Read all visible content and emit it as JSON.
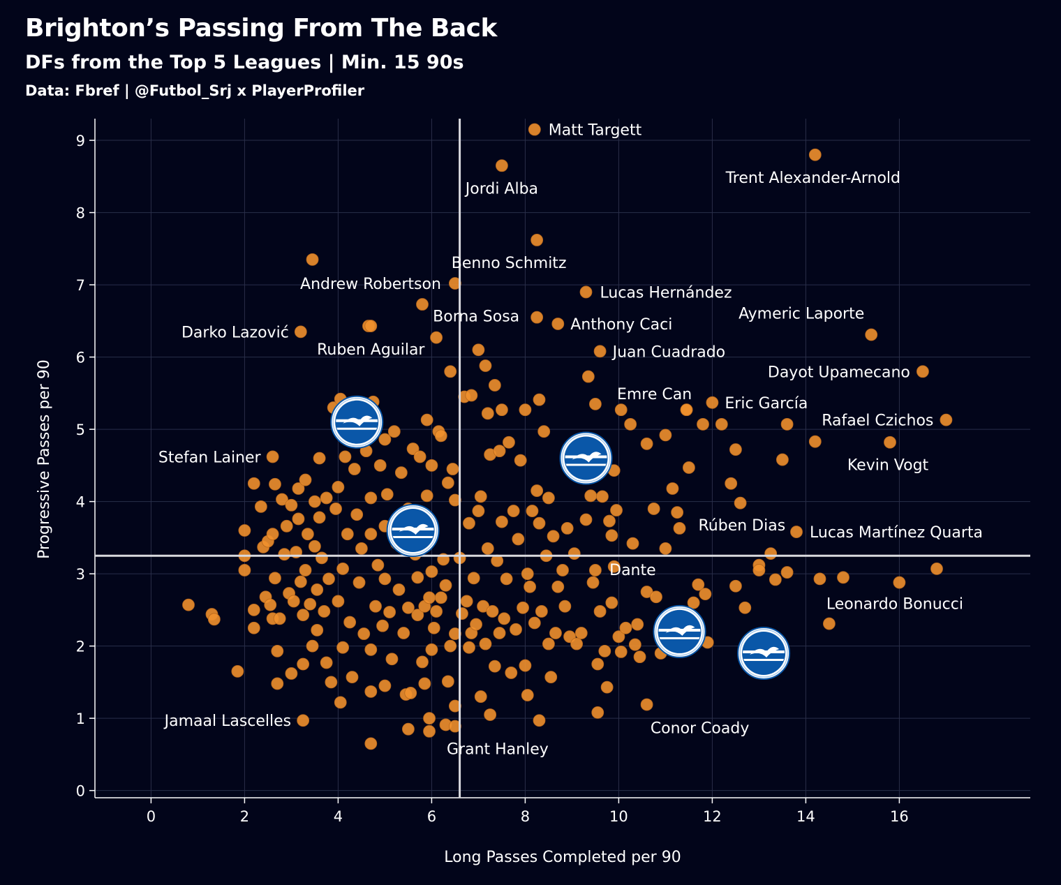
{
  "header": {
    "title": "Brighton’s Passing From The Back",
    "subtitle": "DFs from the Top 5 Leagues | Min. 15 90s",
    "source": "Data: Fbref | @Futbol_Srj x PlayerProfiler"
  },
  "colors": {
    "background": "#02051a",
    "point": "#f0902d",
    "grid": "#2a2f4a",
    "reference_line": "#d9d9de",
    "brighton_blue": "#0a57a8"
  },
  "chart_data": {
    "type": "scatter",
    "xlabel": "Long Passes Completed per 90",
    "ylabel": "Progressive Passes per 90",
    "xlim": [
      -1.2,
      18.8
    ],
    "ylim": [
      -0.1,
      9.3
    ],
    "x_ticks": [
      0,
      2,
      4,
      6,
      8,
      10,
      12,
      14,
      16
    ],
    "y_ticks": [
      0,
      1,
      2,
      3,
      4,
      5,
      6,
      7,
      8,
      9
    ],
    "grid": true,
    "reference_lines": {
      "x": 6.6,
      "y": 3.25
    },
    "brighton_players": [
      {
        "x": 4.4,
        "y": 5.1,
        "icon": "brighton-crest-icon"
      },
      {
        "x": 5.6,
        "y": 3.6,
        "icon": "brighton-crest-icon"
      },
      {
        "x": 9.3,
        "y": 4.6,
        "icon": "brighton-crest-icon"
      },
      {
        "x": 11.3,
        "y": 2.2,
        "icon": "brighton-crest-icon"
      },
      {
        "x": 13.1,
        "y": 1.9,
        "icon": "brighton-crest-icon"
      }
    ],
    "labeled_points": [
      {
        "label": "Matt Targett",
        "x": 8.2,
        "y": 9.15,
        "anchor": "start",
        "dx": 20,
        "dy": 8
      },
      {
        "label": "Jordi Alba",
        "x": 7.5,
        "y": 8.65,
        "anchor": "middle",
        "dx": 0,
        "dy": 40
      },
      {
        "label": "Trent Alexander-Arnold",
        "x": 14.2,
        "y": 8.8,
        "anchor": "middle",
        "dx": -3,
        "dy": 40
      },
      {
        "label": "Benno Schmitz",
        "x": 8.25,
        "y": 7.62,
        "anchor": "middle",
        "dx": -40,
        "dy": 40
      },
      {
        "label": "Andrew Robertson",
        "x": 6.5,
        "y": 7.02,
        "anchor": "end",
        "dx": -20,
        "dy": 8
      },
      {
        "label": "Lucas Hernández",
        "x": 9.3,
        "y": 6.9,
        "anchor": "start",
        "dx": 20,
        "dy": 8
      },
      {
        "label": "Borna Sosa",
        "x": 8.25,
        "y": 6.55,
        "anchor": "end",
        "dx": -25,
        "dy": 6
      },
      {
        "label": "Anthony Caci",
        "x": 8.7,
        "y": 6.46,
        "anchor": "start",
        "dx": 18,
        "dy": 8
      },
      {
        "label": "Aymeric Laporte",
        "x": 15.4,
        "y": 6.31,
        "anchor": "middle",
        "dx": -100,
        "dy": -23
      },
      {
        "label": "Darko Lazović",
        "x": 3.2,
        "y": 6.35,
        "anchor": "end",
        "dx": -17,
        "dy": 8
      },
      {
        "label": "Ruben Aguilar",
        "x": 4.7,
        "y": 6.43,
        "anchor": "middle",
        "dx": 0,
        "dy": 41
      },
      {
        "label": "Juan Cuadrado",
        "x": 9.6,
        "y": 6.08,
        "anchor": "start",
        "dx": 18,
        "dy": 8
      },
      {
        "label": "Dayot Upamecano",
        "x": 16.5,
        "y": 5.8,
        "anchor": "end",
        "dx": -18,
        "dy": 8
      },
      {
        "label": "Emre Can",
        "x": 11.45,
        "y": 5.27,
        "anchor": "middle",
        "dx": -46,
        "dy": -15
      },
      {
        "label": "Eric García",
        "x": 12.0,
        "y": 5.37,
        "anchor": "start",
        "dx": 18,
        "dy": 8
      },
      {
        "label": "Rafael Czichos",
        "x": 17.0,
        "y": 5.13,
        "anchor": "end",
        "dx": -18,
        "dy": 8
      },
      {
        "label": "Kevin Vogt",
        "x": 15.8,
        "y": 4.82,
        "anchor": "middle",
        "dx": -3,
        "dy": 40
      },
      {
        "label": "Stefan Lainer",
        "x": 2.6,
        "y": 4.62,
        "anchor": "end",
        "dx": -17,
        "dy": 8
      },
      {
        "label": "Rúben Dias",
        "x": 11.3,
        "y": 3.63,
        "anchor": "start",
        "dx": 27,
        "dy": 3
      },
      {
        "label": "Lucas Martínez Quarta",
        "x": 13.8,
        "y": 3.58,
        "anchor": "start",
        "dx": 19,
        "dy": 8
      },
      {
        "label": "Dante",
        "x": 11.0,
        "y": 3.35,
        "anchor": "middle",
        "dx": -47,
        "dy": 38
      },
      {
        "label": "Leonardo Bonucci",
        "x": 14.5,
        "y": 2.31,
        "anchor": "middle",
        "dx": 94,
        "dy": -21
      },
      {
        "label": "Conor Coady",
        "x": 10.6,
        "y": 1.19,
        "anchor": "middle",
        "dx": 76,
        "dy": 41
      },
      {
        "label": "Jamaal Lascelles",
        "x": 3.25,
        "y": 0.97,
        "anchor": "end",
        "dx": -17,
        "dy": 8
      },
      {
        "label": "Grant Hanley",
        "x": 6.5,
        "y": 0.89,
        "anchor": "middle",
        "dx": 61,
        "dy": 40
      }
    ],
    "other_points": [
      [
        0.8,
        2.57
      ],
      [
        1.3,
        2.44
      ],
      [
        1.35,
        2.37
      ],
      [
        1.85,
        1.65
      ],
      [
        2.0,
        3.6
      ],
      [
        2.0,
        3.25
      ],
      [
        2.0,
        3.05
      ],
      [
        2.2,
        4.25
      ],
      [
        2.2,
        2.5
      ],
      [
        2.2,
        2.25
      ],
      [
        2.35,
        3.93
      ],
      [
        2.4,
        3.37
      ],
      [
        2.45,
        2.68
      ],
      [
        2.5,
        3.45
      ],
      [
        2.55,
        2.57
      ],
      [
        2.6,
        3.55
      ],
      [
        2.6,
        2.38
      ],
      [
        2.65,
        4.24
      ],
      [
        2.65,
        2.94
      ],
      [
        2.7,
        1.48
      ],
      [
        2.7,
        1.93
      ],
      [
        2.75,
        2.38
      ],
      [
        2.8,
        4.03
      ],
      [
        2.85,
        3.27
      ],
      [
        2.9,
        3.66
      ],
      [
        2.95,
        2.73
      ],
      [
        3.0,
        3.95
      ],
      [
        3.0,
        1.62
      ],
      [
        3.05,
        2.62
      ],
      [
        3.1,
        3.3
      ],
      [
        3.15,
        4.18
      ],
      [
        3.15,
        3.76
      ],
      [
        3.2,
        2.89
      ],
      [
        3.25,
        2.43
      ],
      [
        3.25,
        1.75
      ],
      [
        3.3,
        4.3
      ],
      [
        3.3,
        3.05
      ],
      [
        3.35,
        3.55
      ],
      [
        3.4,
        2.58
      ],
      [
        3.45,
        2.0
      ],
      [
        3.45,
        7.35
      ],
      [
        3.5,
        4.0
      ],
      [
        3.5,
        3.38
      ],
      [
        3.55,
        2.78
      ],
      [
        3.55,
        2.22
      ],
      [
        3.6,
        4.6
      ],
      [
        3.6,
        3.78
      ],
      [
        3.65,
        3.22
      ],
      [
        3.7,
        2.48
      ],
      [
        3.75,
        1.77
      ],
      [
        3.75,
        4.05
      ],
      [
        3.8,
        2.93
      ],
      [
        3.85,
        1.5
      ],
      [
        3.9,
        5.3
      ],
      [
        3.95,
        3.9
      ],
      [
        4.0,
        2.62
      ],
      [
        4.0,
        4.2
      ],
      [
        4.05,
        5.42
      ],
      [
        4.05,
        1.22
      ],
      [
        4.1,
        3.07
      ],
      [
        4.1,
        1.98
      ],
      [
        4.15,
        4.62
      ],
      [
        4.2,
        3.55
      ],
      [
        4.25,
        2.33
      ],
      [
        4.3,
        1.57
      ],
      [
        4.35,
        4.45
      ],
      [
        4.4,
        3.82
      ],
      [
        4.45,
        2.88
      ],
      [
        4.5,
        3.35
      ],
      [
        4.55,
        2.17
      ],
      [
        4.6,
        4.7
      ],
      [
        4.65,
        6.43
      ],
      [
        4.7,
        4.05
      ],
      [
        4.7,
        3.55
      ],
      [
        4.7,
        1.95
      ],
      [
        4.7,
        1.37
      ],
      [
        4.7,
        0.65
      ],
      [
        4.75,
        5.38
      ],
      [
        4.8,
        2.55
      ],
      [
        4.85,
        3.12
      ],
      [
        4.9,
        4.5
      ],
      [
        4.95,
        2.28
      ],
      [
        5.0,
        4.86
      ],
      [
        5.0,
        3.66
      ],
      [
        5.0,
        2.93
      ],
      [
        5.0,
        1.45
      ],
      [
        5.05,
        4.1
      ],
      [
        5.1,
        2.47
      ],
      [
        5.15,
        1.82
      ],
      [
        5.2,
        4.97
      ],
      [
        5.25,
        3.42
      ],
      [
        5.3,
        2.78
      ],
      [
        5.35,
        4.4
      ],
      [
        5.4,
        2.18
      ],
      [
        5.45,
        1.33
      ],
      [
        5.5,
        3.9
      ],
      [
        5.5,
        2.53
      ],
      [
        5.5,
        0.85
      ],
      [
        5.55,
        1.35
      ],
      [
        5.6,
        4.73
      ],
      [
        5.65,
        3.27
      ],
      [
        5.7,
        2.95
      ],
      [
        5.7,
        2.43
      ],
      [
        5.75,
        4.62
      ],
      [
        5.8,
        6.73
      ],
      [
        5.8,
        1.78
      ],
      [
        5.85,
        2.55
      ],
      [
        5.85,
        1.48
      ],
      [
        5.9,
        5.13
      ],
      [
        5.9,
        4.08
      ],
      [
        5.95,
        2.67
      ],
      [
        5.95,
        1.0
      ],
      [
        5.95,
        0.82
      ],
      [
        6.0,
        4.5
      ],
      [
        6.0,
        3.03
      ],
      [
        6.0,
        1.95
      ],
      [
        6.05,
        2.25
      ],
      [
        6.1,
        6.27
      ],
      [
        6.1,
        2.48
      ],
      [
        6.15,
        4.97
      ],
      [
        6.2,
        4.91
      ],
      [
        6.2,
        2.67
      ],
      [
        6.25,
        3.2
      ],
      [
        6.3,
        2.84
      ],
      [
        6.3,
        0.91
      ],
      [
        6.35,
        4.26
      ],
      [
        6.35,
        1.51
      ],
      [
        6.4,
        5.8
      ],
      [
        6.4,
        2.0
      ],
      [
        6.45,
        4.45
      ],
      [
        6.5,
        4.02
      ],
      [
        6.5,
        2.17
      ],
      [
        6.5,
        1.17
      ],
      [
        6.6,
        3.22
      ],
      [
        6.65,
        2.45
      ],
      [
        6.7,
        5.45
      ],
      [
        6.75,
        2.62
      ],
      [
        6.8,
        3.7
      ],
      [
        6.8,
        1.98
      ],
      [
        6.85,
        5.47
      ],
      [
        6.85,
        2.18
      ],
      [
        6.9,
        2.94
      ],
      [
        6.95,
        2.3
      ],
      [
        7.0,
        3.87
      ],
      [
        7.0,
        6.1
      ],
      [
        7.05,
        4.07
      ],
      [
        7.05,
        1.3
      ],
      [
        7.1,
        2.55
      ],
      [
        7.15,
        5.88
      ],
      [
        7.15,
        2.03
      ],
      [
        7.2,
        5.22
      ],
      [
        7.2,
        3.35
      ],
      [
        7.25,
        4.65
      ],
      [
        7.25,
        1.05
      ],
      [
        7.3,
        2.48
      ],
      [
        7.35,
        5.61
      ],
      [
        7.35,
        1.72
      ],
      [
        7.4,
        3.18
      ],
      [
        7.45,
        4.7
      ],
      [
        7.45,
        2.18
      ],
      [
        7.5,
        5.27
      ],
      [
        7.5,
        3.72
      ],
      [
        7.55,
        2.38
      ],
      [
        7.6,
        2.93
      ],
      [
        7.65,
        4.82
      ],
      [
        7.7,
        1.63
      ],
      [
        7.75,
        3.87
      ],
      [
        7.8,
        2.23
      ],
      [
        7.85,
        3.48
      ],
      [
        7.9,
        4.57
      ],
      [
        7.95,
        2.53
      ],
      [
        8.0,
        5.27
      ],
      [
        8.0,
        1.73
      ],
      [
        8.05,
        3.0
      ],
      [
        8.05,
        1.32
      ],
      [
        8.1,
        2.82
      ],
      [
        8.15,
        3.87
      ],
      [
        8.2,
        2.32
      ],
      [
        8.25,
        4.15
      ],
      [
        8.3,
        5.41
      ],
      [
        8.3,
        3.7
      ],
      [
        8.3,
        0.97
      ],
      [
        8.35,
        2.48
      ],
      [
        8.4,
        4.97
      ],
      [
        8.45,
        3.25
      ],
      [
        8.5,
        4.05
      ],
      [
        8.5,
        2.03
      ],
      [
        8.55,
        1.57
      ],
      [
        8.6,
        3.52
      ],
      [
        8.65,
        2.18
      ],
      [
        8.7,
        2.82
      ],
      [
        8.8,
        3.05
      ],
      [
        8.85,
        2.55
      ],
      [
        8.9,
        3.63
      ],
      [
        8.95,
        2.13
      ],
      [
        9.05,
        3.28
      ],
      [
        9.1,
        2.03
      ],
      [
        9.2,
        2.18
      ],
      [
        9.3,
        3.75
      ],
      [
        9.35,
        5.73
      ],
      [
        9.4,
        4.08
      ],
      [
        9.45,
        2.88
      ],
      [
        9.5,
        5.35
      ],
      [
        9.5,
        3.05
      ],
      [
        9.55,
        1.75
      ],
      [
        9.55,
        1.08
      ],
      [
        9.6,
        2.48
      ],
      [
        9.65,
        4.07
      ],
      [
        9.7,
        1.93
      ],
      [
        9.75,
        1.43
      ],
      [
        9.8,
        3.73
      ],
      [
        9.85,
        2.6
      ],
      [
        9.85,
        3.53
      ],
      [
        9.9,
        4.43
      ],
      [
        9.9,
        3.1
      ],
      [
        9.95,
        3.88
      ],
      [
        10.0,
        2.13
      ],
      [
        10.05,
        5.27
      ],
      [
        10.05,
        1.92
      ],
      [
        10.15,
        2.25
      ],
      [
        10.25,
        5.07
      ],
      [
        10.3,
        3.42
      ],
      [
        10.35,
        2.02
      ],
      [
        10.4,
        2.3
      ],
      [
        10.45,
        1.85
      ],
      [
        10.6,
        4.8
      ],
      [
        10.6,
        2.75
      ],
      [
        10.75,
        3.9
      ],
      [
        10.8,
        2.68
      ],
      [
        10.9,
        1.9
      ],
      [
        11.0,
        4.92
      ],
      [
        11.15,
        4.18
      ],
      [
        11.25,
        3.85
      ],
      [
        11.45,
        5.27
      ],
      [
        11.5,
        4.47
      ],
      [
        11.6,
        2.6
      ],
      [
        11.7,
        2.85
      ],
      [
        11.8,
        5.07
      ],
      [
        11.85,
        2.72
      ],
      [
        11.9,
        2.05
      ],
      [
        12.2,
        5.07
      ],
      [
        12.4,
        4.25
      ],
      [
        12.5,
        4.72
      ],
      [
        12.5,
        2.83
      ],
      [
        12.6,
        3.98
      ],
      [
        12.7,
        2.53
      ],
      [
        13.0,
        3.12
      ],
      [
        13.0,
        3.05
      ],
      [
        13.25,
        3.28
      ],
      [
        13.35,
        2.92
      ],
      [
        13.5,
        4.58
      ],
      [
        13.6,
        5.07
      ],
      [
        13.6,
        3.02
      ],
      [
        14.2,
        4.83
      ],
      [
        14.3,
        2.93
      ],
      [
        14.8,
        2.95
      ],
      [
        16.0,
        2.88
      ],
      [
        16.8,
        3.07
      ]
    ]
  }
}
